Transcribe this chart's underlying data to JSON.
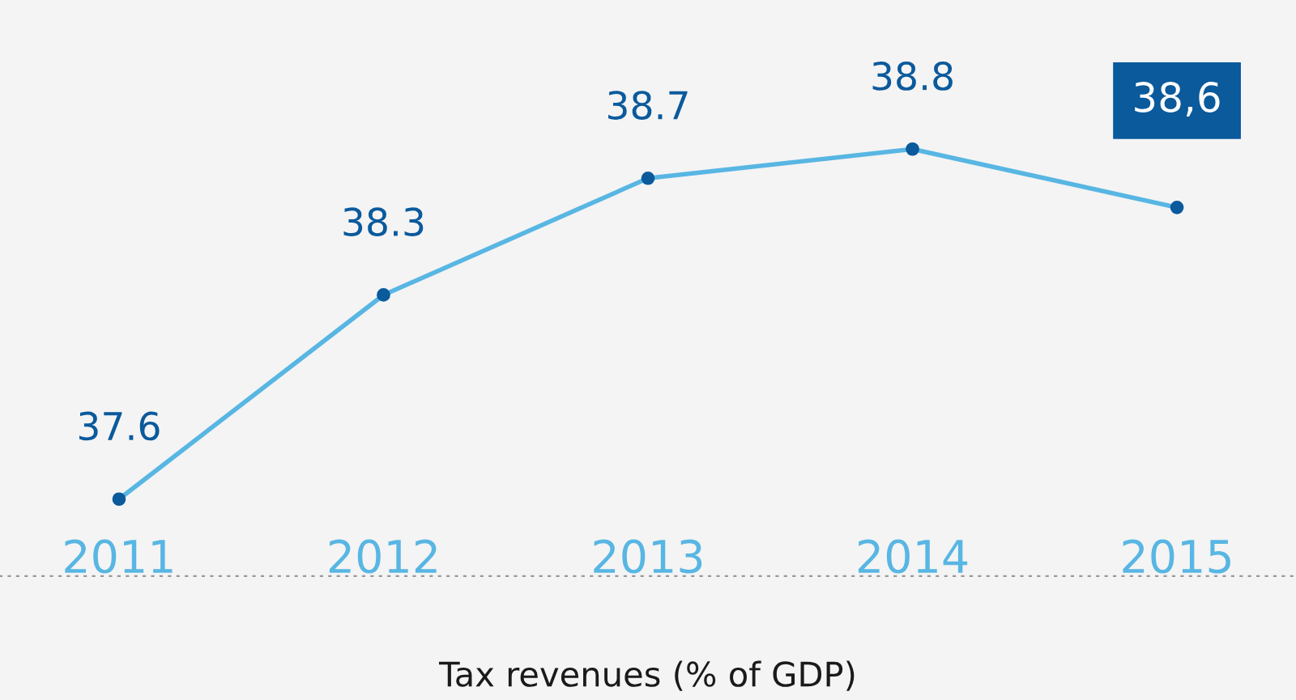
{
  "chart_data": {
    "type": "line",
    "xlabel": "Tax revenues (% of GDP)",
    "categories": [
      "2011",
      "2012",
      "2013",
      "2014",
      "2015"
    ],
    "series": [
      {
        "color": "#58b6e3",
        "values": [
          37.6,
          38.3,
          38.7,
          38.8,
          38.6
        ],
        "value_labels": [
          "37.6",
          "38.3",
          "38.7",
          "38.8",
          "38,6"
        ]
      }
    ],
    "marker": "circle",
    "line_style": "solid",
    "grid": false,
    "legend": false,
    "tick_labels": "x"
  }
}
